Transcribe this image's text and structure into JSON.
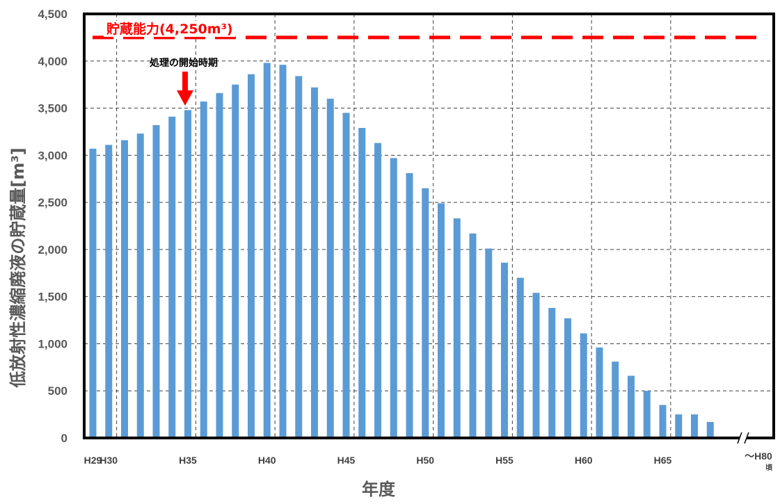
{
  "chart_data": {
    "type": "bar",
    "title": "",
    "xlabel": "年度",
    "ylabel": "低放射性濃縮廃液の貯蔵量",
    "ylabel_unit": "[m³]",
    "ylim": [
      0,
      4500
    ],
    "yticks": [
      "0",
      "500",
      "1,000",
      "1,500",
      "2,000",
      "2,500",
      "3,000",
      "3,500",
      "4,000",
      "4,500"
    ],
    "grid": true,
    "legend": "none",
    "bar_color": "#5b9bd5",
    "categories": [
      "H29",
      "H30",
      "H31",
      "H32",
      "H33",
      "H34",
      "H35",
      "H36",
      "H37",
      "H38",
      "H39",
      "H40",
      "H41",
      "H42",
      "H43",
      "H44",
      "H45",
      "H46",
      "H47",
      "H48",
      "H49",
      "H50",
      "H51",
      "H52",
      "H53",
      "H54",
      "H55",
      "H56",
      "H57",
      "H58",
      "H59",
      "H60",
      "H61",
      "H62",
      "H63",
      "H64",
      "H65",
      "H66",
      "H67",
      "H68"
    ],
    "values": [
      3070,
      3110,
      3160,
      3230,
      3320,
      3410,
      3480,
      3570,
      3660,
      3750,
      3860,
      3980,
      3960,
      3840,
      3720,
      3600,
      3450,
      3290,
      3130,
      2970,
      2810,
      2650,
      2490,
      2330,
      2170,
      2010,
      1860,
      1700,
      1540,
      1380,
      1270,
      1110,
      960,
      810,
      660,
      500,
      350,
      250,
      250,
      170
    ],
    "xtick_labels": [
      {
        "category": "H29",
        "text": "H29"
      },
      {
        "category": "H30",
        "text": "H30"
      },
      {
        "category": "H35",
        "text": "H35"
      },
      {
        "category": "H40",
        "text": "H40"
      },
      {
        "category": "H45",
        "text": "H45"
      },
      {
        "category": "H50",
        "text": "H50"
      },
      {
        "category": "H55",
        "text": "H55"
      },
      {
        "category": "H60",
        "text": "H60"
      },
      {
        "category": "H65",
        "text": "H65"
      }
    ],
    "x_end_label": "～H80",
    "x_end_note": "頃",
    "capacity": {
      "value": 4250,
      "label": "貯蔵能力(4,250m³)",
      "color": "#ff0000"
    },
    "annotation": {
      "category": "H35",
      "text": "処理の開始時期",
      "arrow_color": "#ff0000"
    }
  }
}
